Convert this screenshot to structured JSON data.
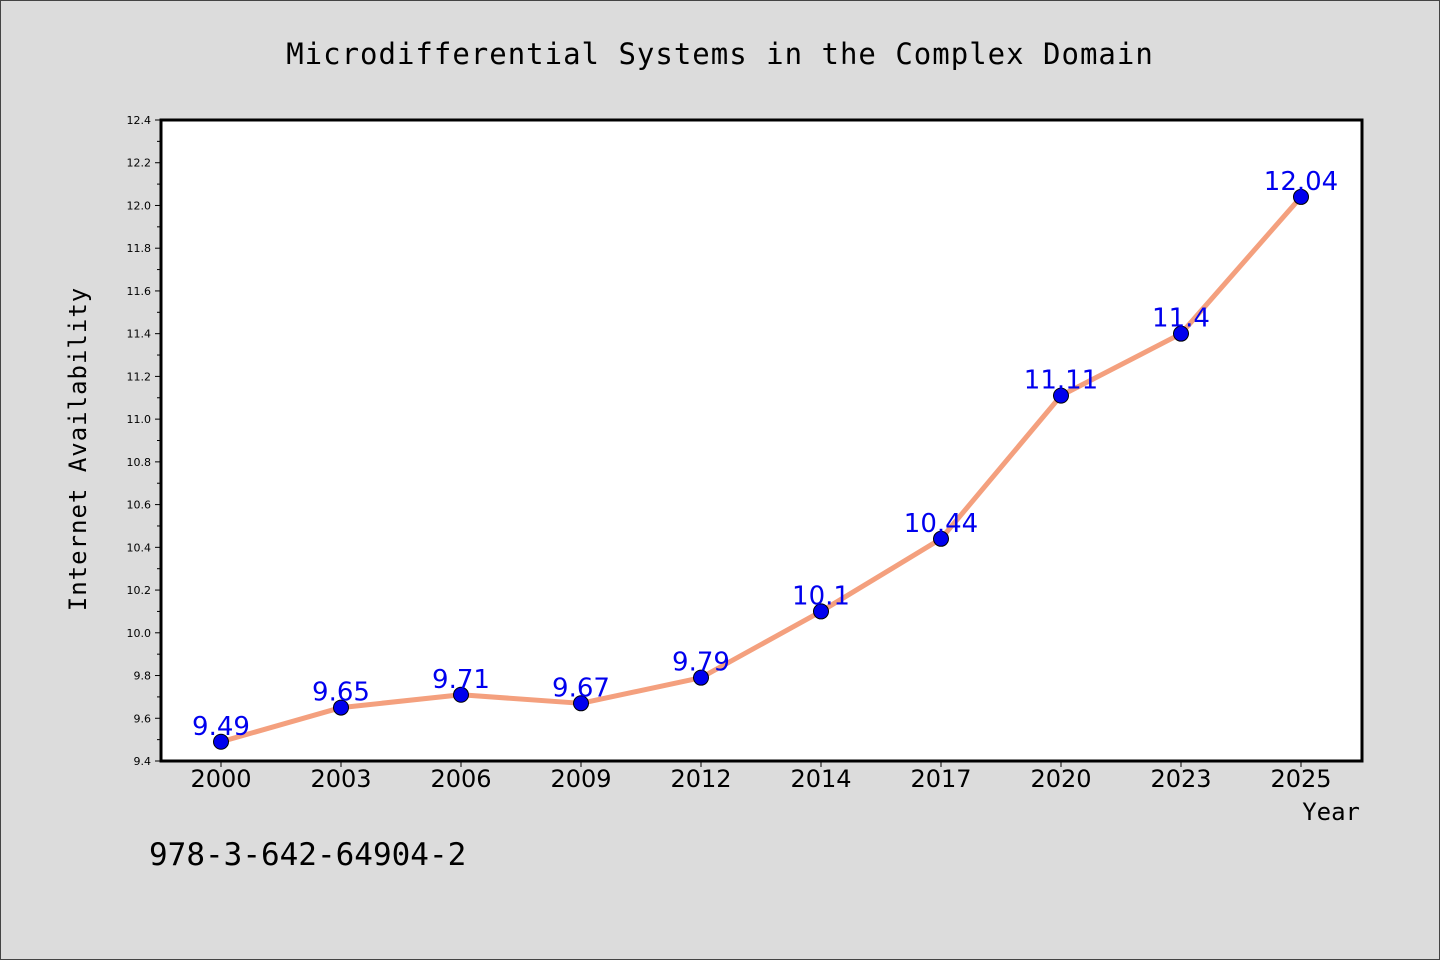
{
  "chart_data": {
    "type": "line",
    "title": "Microdifferential Systems in the Complex Domain",
    "xlabel": "Year",
    "ylabel": "Internet Availability",
    "categories": [
      "2000",
      "2003",
      "2006",
      "2009",
      "2012",
      "2014",
      "2017",
      "2020",
      "2023",
      "2025"
    ],
    "values": [
      9.49,
      9.65,
      9.71,
      9.67,
      9.79,
      10.1,
      10.44,
      11.11,
      11.4,
      12.04
    ],
    "data_labels": [
      "9.49",
      "9.65",
      "9.71",
      "9.67",
      "9.79",
      "10.1",
      "10.44",
      "11.11",
      "11.4",
      "12.04"
    ],
    "ylim": [
      9.4,
      12.4
    ],
    "yticks": [
      "9.4",
      "9.6",
      "9.8",
      "10.0",
      "10.2",
      "10.4",
      "10.6",
      "10.8",
      "11.0",
      "11.2",
      "11.4",
      "11.6",
      "11.8",
      "12.0",
      "12.2",
      "12.4"
    ],
    "grid": false,
    "legend": "none",
    "line_color": "#f4a07e",
    "marker_color": "#0000ee",
    "label_color": "#0000ee"
  },
  "footer": {
    "text": "978-3-642-64904-2"
  }
}
